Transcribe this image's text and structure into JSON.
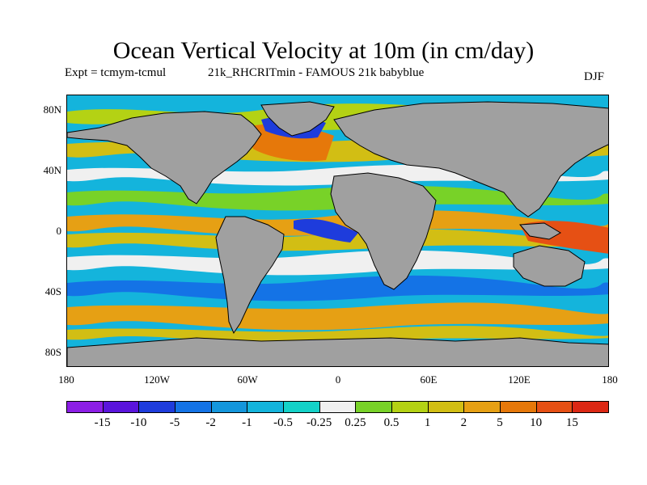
{
  "title": "Ocean Vertical Velocity at 10m (in cm/day)",
  "subtitle_left": "Expt = tcmym-tcmul",
  "subtitle_mid": "21k_RHCRITmin - FAMOUS 21k babyblue",
  "season": "DJF",
  "lat_labels": [
    "80N",
    "40N",
    "0",
    "40S",
    "80S"
  ],
  "lon_labels": [
    "180",
    "120W",
    "60W",
    "0",
    "60E",
    "120E",
    "180"
  ],
  "colorbar": {
    "labels": [
      "-15",
      "-10",
      "-5",
      "-2",
      "-1",
      "-0.5",
      "-0.25",
      "0.25",
      "0.5",
      "1",
      "2",
      "5",
      "10",
      "15"
    ],
    "colors": [
      "#8c1ee6",
      "#5a14dc",
      "#1e3cdc",
      "#1473e6",
      "#1496dc",
      "#14b4dc",
      "#14d2c8",
      "#f0f0f0",
      "#78d228",
      "#b4d214",
      "#d2be14",
      "#e6a014",
      "#e6780a",
      "#e65014",
      "#dc2814"
    ]
  },
  "land_color": "#a0a0a0"
}
